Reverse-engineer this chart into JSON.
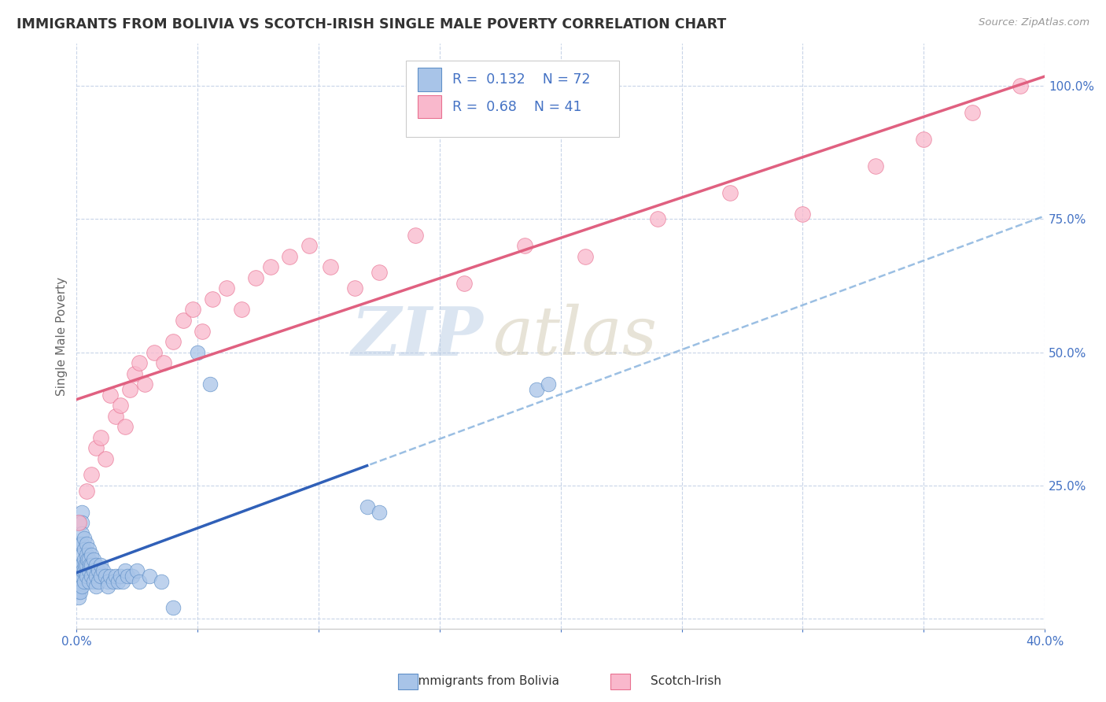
{
  "title": "IMMIGRANTS FROM BOLIVIA VS SCOTCH-IRISH SINGLE MALE POVERTY CORRELATION CHART",
  "source": "Source: ZipAtlas.com",
  "ylabel": "Single Male Poverty",
  "xlim": [
    0.0,
    0.4
  ],
  "ylim": [
    -0.02,
    1.08
  ],
  "yticks": [
    0.0,
    0.25,
    0.5,
    0.75,
    1.0
  ],
  "yticklabels": [
    "",
    "25.0%",
    "50.0%",
    "75.0%",
    "100.0%"
  ],
  "watermark_zip": "ZIP",
  "watermark_atlas": "atlas",
  "bolivia_R": 0.132,
  "bolivia_N": 72,
  "scotch_R": 0.68,
  "scotch_N": 41,
  "bolivia_color": "#a8c4e8",
  "scotch_color": "#f9b8cc",
  "bolivia_edge_color": "#6090c8",
  "scotch_edge_color": "#e87090",
  "bolivia_line_color": "#3060b8",
  "scotch_line_color": "#e06080",
  "bolivia_dash_color": "#90b8e0",
  "background_color": "#ffffff",
  "grid_color": "#c8d4e8",
  "title_color": "#333333",
  "axis_label_color": "#666666",
  "tick_color": "#4472c4",
  "bolivia_scatter_x": [
    0.0005,
    0.0007,
    0.001,
    0.001,
    0.001,
    0.001,
    0.001,
    0.0012,
    0.0015,
    0.0015,
    0.002,
    0.002,
    0.002,
    0.002,
    0.002,
    0.002,
    0.002,
    0.002,
    0.0025,
    0.003,
    0.003,
    0.003,
    0.003,
    0.003,
    0.0035,
    0.004,
    0.004,
    0.004,
    0.004,
    0.0045,
    0.005,
    0.005,
    0.005,
    0.005,
    0.0055,
    0.006,
    0.006,
    0.006,
    0.007,
    0.007,
    0.007,
    0.008,
    0.008,
    0.008,
    0.009,
    0.009,
    0.01,
    0.01,
    0.011,
    0.012,
    0.013,
    0.013,
    0.014,
    0.015,
    0.016,
    0.017,
    0.018,
    0.019,
    0.02,
    0.021,
    0.023,
    0.025,
    0.026,
    0.03,
    0.035,
    0.04,
    0.05,
    0.055,
    0.12,
    0.125,
    0.19,
    0.195
  ],
  "bolivia_scatter_y": [
    0.18,
    0.14,
    0.08,
    0.07,
    0.06,
    0.05,
    0.04,
    0.1,
    0.07,
    0.05,
    0.2,
    0.18,
    0.16,
    0.14,
    0.12,
    0.1,
    0.08,
    0.06,
    0.09,
    0.15,
    0.13,
    0.11,
    0.09,
    0.07,
    0.1,
    0.14,
    0.12,
    0.1,
    0.08,
    0.11,
    0.13,
    0.11,
    0.09,
    0.07,
    0.1,
    0.12,
    0.1,
    0.08,
    0.11,
    0.09,
    0.07,
    0.1,
    0.08,
    0.06,
    0.09,
    0.07,
    0.1,
    0.08,
    0.09,
    0.08,
    0.07,
    0.06,
    0.08,
    0.07,
    0.08,
    0.07,
    0.08,
    0.07,
    0.09,
    0.08,
    0.08,
    0.09,
    0.07,
    0.08,
    0.07,
    0.02,
    0.5,
    0.44,
    0.21,
    0.2,
    0.43,
    0.44
  ],
  "scotch_scatter_x": [
    0.001,
    0.004,
    0.006,
    0.008,
    0.01,
    0.012,
    0.014,
    0.016,
    0.018,
    0.02,
    0.022,
    0.024,
    0.026,
    0.028,
    0.032,
    0.036,
    0.04,
    0.044,
    0.048,
    0.052,
    0.056,
    0.062,
    0.068,
    0.074,
    0.08,
    0.088,
    0.096,
    0.105,
    0.115,
    0.125,
    0.14,
    0.16,
    0.185,
    0.21,
    0.24,
    0.27,
    0.3,
    0.33,
    0.35,
    0.37,
    0.39
  ],
  "scotch_scatter_y": [
    0.18,
    0.24,
    0.27,
    0.32,
    0.34,
    0.3,
    0.42,
    0.38,
    0.4,
    0.36,
    0.43,
    0.46,
    0.48,
    0.44,
    0.5,
    0.48,
    0.52,
    0.56,
    0.58,
    0.54,
    0.6,
    0.62,
    0.58,
    0.64,
    0.66,
    0.68,
    0.7,
    0.66,
    0.62,
    0.65,
    0.72,
    0.63,
    0.7,
    0.68,
    0.75,
    0.8,
    0.76,
    0.85,
    0.9,
    0.95,
    1.0
  ]
}
